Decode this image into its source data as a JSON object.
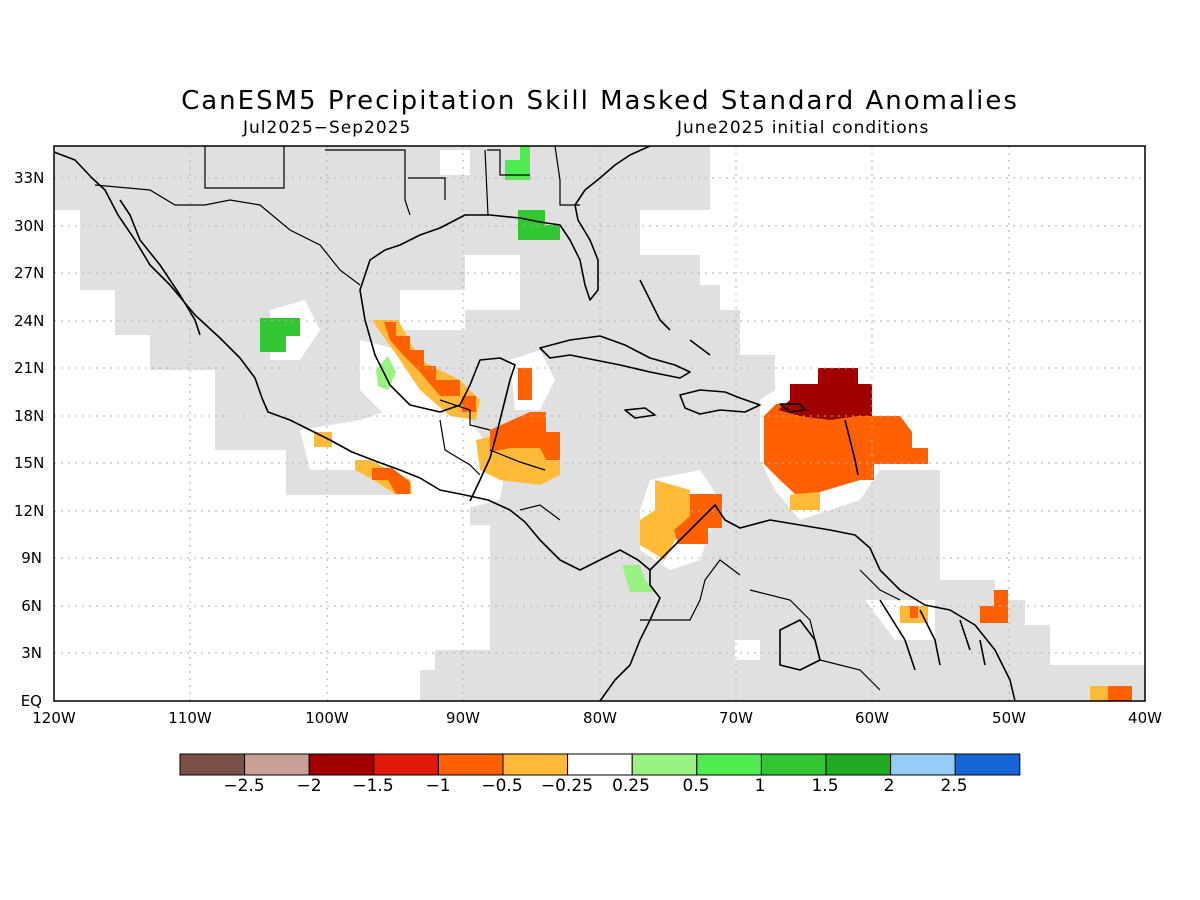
{
  "map": {
    "title": "CanESM5 Precipitation Skill Masked Standard Anomalies",
    "period": "Jul2025−Sep2025",
    "initial_conditions": "June2025 initial conditions",
    "lat_labels": [
      "33N",
      "30N",
      "27N",
      "24N",
      "21N",
      "18N",
      "15N",
      "12N",
      "9N",
      "6N",
      "3N",
      "EQ"
    ],
    "lon_labels": [
      "120W",
      "110W",
      "100W",
      "90W",
      "80W",
      "70W",
      "60W",
      "50W",
      "40W"
    ]
  },
  "legend": {
    "colors": [
      "#7a4f45",
      "#c8a096",
      "#a00000",
      "#e01b0e",
      "#ff6000",
      "#ffbb38",
      "#ffffff",
      "#9af283",
      "#50eb50",
      "#32c632",
      "#1fab1f",
      "#96ccf8",
      "#1665d4"
    ],
    "tick_labels": [
      "−2.5",
      "−2",
      "−1.5",
      "−1",
      "−0.5",
      "−0.25",
      "0.25",
      "0.5",
      "1",
      "1.5",
      "2",
      "2.5"
    ]
  },
  "colors": {
    "masked": "#e0e0e0",
    "coast": "#000000",
    "grid": "#b0b0b0"
  }
}
